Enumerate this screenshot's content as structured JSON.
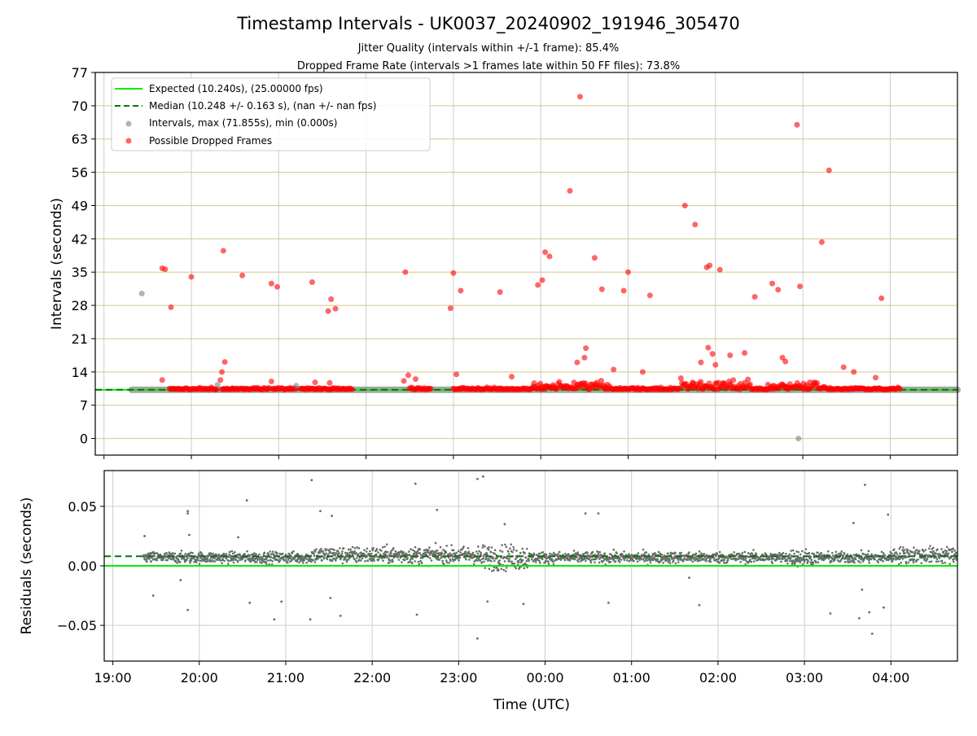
{
  "chart_data": [
    {
      "type": "scatter",
      "title": "Timestamp Intervals - UK0037_20240902_191946_305470",
      "subtitle_lines": [
        "Jitter Quality (intervals within +/-1 frame): 85.4%",
        "Dropped Frame Rate (intervals >1 frames late within 50 FF files): 73.8%"
      ],
      "xlabel": "",
      "ylabel": "Intervals (seconds)",
      "ylim": [
        -3.5,
        77
      ],
      "yticks": [
        0,
        7,
        14,
        21,
        28,
        35,
        42,
        49,
        56,
        63,
        70,
        77
      ],
      "ytick_labels": [
        "0",
        "7",
        "14",
        "21",
        "28",
        "35",
        "42",
        "49",
        "56",
        "63",
        "70",
        "77"
      ],
      "xlim_hours": [
        18.9,
        28.77
      ],
      "grid": true,
      "legend_position": "upper-left",
      "legend": [
        "Expected (10.240s), (25.00000 fps)",
        "Median (10.248 +/- 0.163 s), (nan +/- nan fps)",
        "Intervals, max (71.855s), min (0.000s)",
        "Possible Dropped Frames"
      ],
      "expected_interval": 10.24,
      "median_interval": 10.248,
      "interval_band": {
        "start": "19:19",
        "end": "04:48",
        "value": 10.24
      },
      "gray_points": [
        {
          "t": "19:26",
          "v": 30.5
        },
        {
          "t": "20:18",
          "v": 11.3
        },
        {
          "t": "21:12",
          "v": 11.1
        },
        {
          "t": "02:57",
          "v": 0.0
        }
      ],
      "dropped_points": [
        {
          "t": "19:40",
          "v": 35.8
        },
        {
          "t": "19:42",
          "v": 35.6
        },
        {
          "t": "19:46",
          "v": 27.6
        },
        {
          "t": "19:40",
          "v": 12.3
        },
        {
          "t": "20:00",
          "v": 34.0
        },
        {
          "t": "20:22",
          "v": 39.5
        },
        {
          "t": "20:21",
          "v": 14.0
        },
        {
          "t": "20:23",
          "v": 16.1
        },
        {
          "t": "20:20",
          "v": 12.3
        },
        {
          "t": "20:35",
          "v": 34.3
        },
        {
          "t": "20:55",
          "v": 32.6
        },
        {
          "t": "20:59",
          "v": 31.9
        },
        {
          "t": "20:55",
          "v": 12.0
        },
        {
          "t": "21:23",
          "v": 32.9
        },
        {
          "t": "21:34",
          "v": 26.8
        },
        {
          "t": "21:36",
          "v": 29.3
        },
        {
          "t": "21:39",
          "v": 27.3
        },
        {
          "t": "21:25",
          "v": 11.8
        },
        {
          "t": "21:35",
          "v": 11.7
        },
        {
          "t": "22:27",
          "v": 35.0
        },
        {
          "t": "22:29",
          "v": 13.3
        },
        {
          "t": "22:26",
          "v": 12.1
        },
        {
          "t": "22:34",
          "v": 12.5
        },
        {
          "t": "22:58",
          "v": 27.4
        },
        {
          "t": "23:00",
          "v": 34.8
        },
        {
          "t": "23:05",
          "v": 31.1
        },
        {
          "t": "23:02",
          "v": 13.5
        },
        {
          "t": "23:32",
          "v": 30.8
        },
        {
          "t": "23:40",
          "v": 13.0
        },
        {
          "t": "23:58",
          "v": 32.3
        },
        {
          "t": "00:01",
          "v": 33.3
        },
        {
          "t": "00:03",
          "v": 39.2
        },
        {
          "t": "00:06",
          "v": 38.3
        },
        {
          "t": "00:20",
          "v": 52.1
        },
        {
          "t": "00:27",
          "v": 71.9
        },
        {
          "t": "00:31",
          "v": 19.0
        },
        {
          "t": "00:25",
          "v": 16.0
        },
        {
          "t": "00:30",
          "v": 17.0
        },
        {
          "t": "00:37",
          "v": 38.0
        },
        {
          "t": "00:42",
          "v": 31.4
        },
        {
          "t": "00:57",
          "v": 31.1
        },
        {
          "t": "01:00",
          "v": 35.0
        },
        {
          "t": "01:15",
          "v": 30.1
        },
        {
          "t": "00:50",
          "v": 14.5
        },
        {
          "t": "01:10",
          "v": 14.0
        },
        {
          "t": "01:39",
          "v": 49.0
        },
        {
          "t": "01:46",
          "v": 45.0
        },
        {
          "t": "01:54",
          "v": 36.0
        },
        {
          "t": "01:56",
          "v": 36.4
        },
        {
          "t": "02:03",
          "v": 35.5
        },
        {
          "t": "01:50",
          "v": 16.0
        },
        {
          "t": "01:55",
          "v": 19.1
        },
        {
          "t": "01:58",
          "v": 17.8
        },
        {
          "t": "02:00",
          "v": 15.5
        },
        {
          "t": "02:10",
          "v": 17.5
        },
        {
          "t": "02:20",
          "v": 18.0
        },
        {
          "t": "02:27",
          "v": 29.8
        },
        {
          "t": "02:39",
          "v": 32.6
        },
        {
          "t": "02:43",
          "v": 31.3
        },
        {
          "t": "02:46",
          "v": 17.0
        },
        {
          "t": "02:48",
          "v": 16.2
        },
        {
          "t": "02:56",
          "v": 66.0
        },
        {
          "t": "02:58",
          "v": 32.0
        },
        {
          "t": "03:13",
          "v": 41.3
        },
        {
          "t": "03:18",
          "v": 56.4
        },
        {
          "t": "03:28",
          "v": 15.0
        },
        {
          "t": "03:35",
          "v": 14.0
        },
        {
          "t": "03:54",
          "v": 29.5
        },
        {
          "t": "03:50",
          "v": 12.8
        }
      ]
    },
    {
      "type": "scatter",
      "title": "",
      "xlabel": "Time (UTC)",
      "ylabel": "Residuals (seconds)",
      "ylim": [
        -0.08,
        0.08
      ],
      "yticks": [
        -0.05,
        0.0,
        0.05
      ],
      "ytick_labels": [
        "−0.05",
        "0.00",
        "0.05"
      ],
      "xlim_hours": [
        18.9,
        28.77
      ],
      "xtick_labels": [
        "19:00",
        "20:00",
        "21:00",
        "22:00",
        "23:00",
        "00:00",
        "01:00",
        "02:00",
        "03:00",
        "04:00"
      ],
      "grid": true,
      "expected_residual": 0.0,
      "median_residual": 0.008,
      "residual_outliers": [
        {
          "t": "19:22",
          "v": 0.025
        },
        {
          "t": "19:28",
          "v": -0.025
        },
        {
          "t": "19:52",
          "v": 0.046
        },
        {
          "t": "19:52",
          "v": 0.044
        },
        {
          "t": "19:53",
          "v": 0.026
        },
        {
          "t": "19:52",
          "v": -0.037
        },
        {
          "t": "19:47",
          "v": -0.012
        },
        {
          "t": "20:33",
          "v": 0.055
        },
        {
          "t": "20:27",
          "v": 0.024
        },
        {
          "t": "20:35",
          "v": -0.031
        },
        {
          "t": "20:52",
          "v": -0.045
        },
        {
          "t": "20:57",
          "v": -0.03
        },
        {
          "t": "21:18",
          "v": 0.072
        },
        {
          "t": "21:24",
          "v": 0.046
        },
        {
          "t": "21:32",
          "v": 0.042
        },
        {
          "t": "21:17",
          "v": -0.045
        },
        {
          "t": "21:38",
          "v": -0.042
        },
        {
          "t": "21:31",
          "v": -0.027
        },
        {
          "t": "22:30",
          "v": 0.069
        },
        {
          "t": "22:31",
          "v": -0.041
        },
        {
          "t": "22:45",
          "v": 0.047
        },
        {
          "t": "23:13",
          "v": 0.073
        },
        {
          "t": "23:17",
          "v": 0.075
        },
        {
          "t": "23:13",
          "v": -0.061
        },
        {
          "t": "23:32",
          "v": 0.035
        },
        {
          "t": "23:20",
          "v": -0.03
        },
        {
          "t": "23:45",
          "v": -0.032
        },
        {
          "t": "00:28",
          "v": 0.044
        },
        {
          "t": "00:37",
          "v": 0.044
        },
        {
          "t": "00:44",
          "v": -0.031
        },
        {
          "t": "01:40",
          "v": -0.01
        },
        {
          "t": "01:47",
          "v": -0.033
        },
        {
          "t": "03:18",
          "v": -0.04
        },
        {
          "t": "03:38",
          "v": -0.044
        },
        {
          "t": "03:42",
          "v": 0.068
        },
        {
          "t": "03:45",
          "v": -0.039
        },
        {
          "t": "03:47",
          "v": -0.057
        },
        {
          "t": "03:55",
          "v": -0.035
        },
        {
          "t": "03:58",
          "v": 0.043
        },
        {
          "t": "03:34",
          "v": 0.036
        },
        {
          "t": "03:40",
          "v": -0.02
        }
      ]
    }
  ],
  "colors": {
    "expected": "#00ee00",
    "median": "#007a00",
    "intervals": "#808080",
    "dropped": "#ff0000",
    "hgrid_top": "#d6c88a",
    "vgrid": "#cccccc",
    "residual_points": "#6b6b6b"
  }
}
